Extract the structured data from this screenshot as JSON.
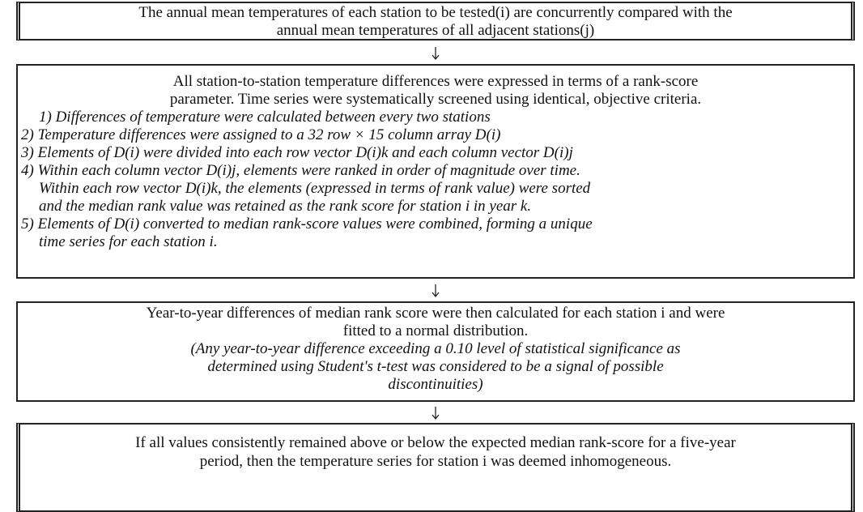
{
  "boxes": [
    {
      "lines": [
        "The annual mean temperatures of each station to be tested(i) are concurrently compared with the",
        "annual mean temperatures of all adjacent stations(j)"
      ]
    },
    {
      "lines": [
        "All station-to-station temperature differences were expressed in terms of a rank-score",
        "parameter. Time series were systematically screened using identical, objective criteria.",
        "1) Differences of temperature were calculated between every two stations",
        "2) Temperature differences were assigned to a 32 row × 15 column array D(i)",
        "3) Elements of D(i) were divided into each row vector D(i)k and each column vector D(i)j",
        "4) Within each column vector D(i)j, elements were ranked in order of magnitude over time.",
        "Within each row vector D(i)k, the elements (expressed in terms of rank value) were sorted",
        "and the median rank value was retained as the rank score for station i in year k.",
        "5) Elements of D(i) converted to median rank-score values were combined, forming a unique",
        "time series for each station i."
      ]
    },
    {
      "lines": [
        "Year-to-year differences of median rank score were then calculated for each station i and were",
        "fitted to a normal distribution.",
        "(Any year-to-year difference exceeding a 0.10 level of statistical significance as",
        "determined using Student's t-test was considered to be a signal of possible",
        "discontinuities)"
      ]
    },
    {
      "lines": [
        "If all values consistently remained above or below the expected median rank-score for a five-year",
        "period, then the temperature series for station i was deemed inhomogeneous."
      ]
    }
  ]
}
